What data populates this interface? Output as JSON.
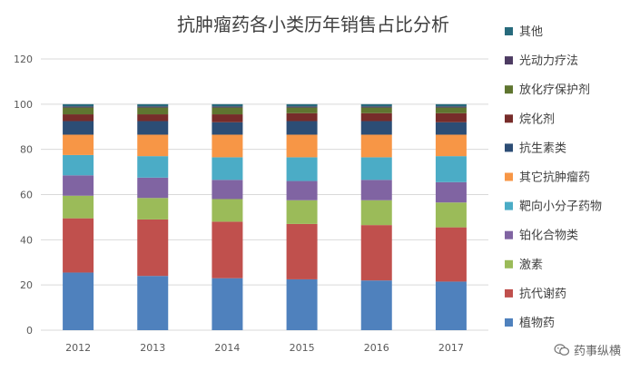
{
  "chart_data": {
    "type": "bar",
    "stacked": true,
    "title": "抗肿瘤药各小类历年销售占比分析",
    "xlabel": "",
    "ylabel": "",
    "ylim": [
      0,
      120
    ],
    "yticks": [
      0,
      20,
      40,
      60,
      80,
      100,
      120
    ],
    "grid": true,
    "legend_position": "right",
    "categories": [
      "2012",
      "2013",
      "2014",
      "2015",
      "2016",
      "2017"
    ],
    "series": [
      {
        "name": "植物药",
        "color": "#4f81bd",
        "values": [
          25.5,
          24.0,
          23.0,
          22.5,
          22.0,
          21.5
        ]
      },
      {
        "name": "抗代谢药",
        "color": "#c0504d",
        "values": [
          24.0,
          25.0,
          25.0,
          24.5,
          24.5,
          24.0
        ]
      },
      {
        "name": "激素",
        "color": "#9bbb59",
        "values": [
          10.0,
          9.5,
          10.0,
          10.5,
          11.0,
          11.0
        ]
      },
      {
        "name": "铂化合物类",
        "color": "#8064a2",
        "values": [
          9.0,
          9.0,
          8.5,
          8.5,
          9.0,
          9.0
        ]
      },
      {
        "name": "靶向小分子药物",
        "color": "#4bacc6",
        "values": [
          9.0,
          9.5,
          10.0,
          10.5,
          10.0,
          11.5
        ]
      },
      {
        "name": "其它抗肿瘤药",
        "color": "#f79646",
        "values": [
          9.0,
          9.5,
          10.0,
          10.0,
          10.0,
          9.5
        ]
      },
      {
        "name": "抗生素类",
        "color": "#2c4d75",
        "values": [
          6.0,
          6.0,
          5.5,
          6.0,
          6.0,
          5.5
        ]
      },
      {
        "name": "烷化剂",
        "color": "#772c2a",
        "values": [
          3.0,
          3.0,
          3.5,
          3.5,
          3.5,
          4.0
        ]
      },
      {
        "name": "放化疗保护剂",
        "color": "#5f7530",
        "values": [
          3.0,
          3.0,
          3.0,
          2.5,
          2.5,
          2.5
        ]
      },
      {
        "name": "光动力疗法",
        "color": "#4d3b62",
        "values": [
          0.5,
          0.5,
          0.5,
          0.5,
          0.5,
          0.5
        ]
      },
      {
        "name": "其他",
        "color": "#276a7c",
        "values": [
          1.0,
          1.0,
          1.0,
          1.0,
          1.0,
          1.0
        ]
      }
    ]
  },
  "watermark": {
    "text": "药事纵横",
    "icon": "wechat-icon"
  }
}
